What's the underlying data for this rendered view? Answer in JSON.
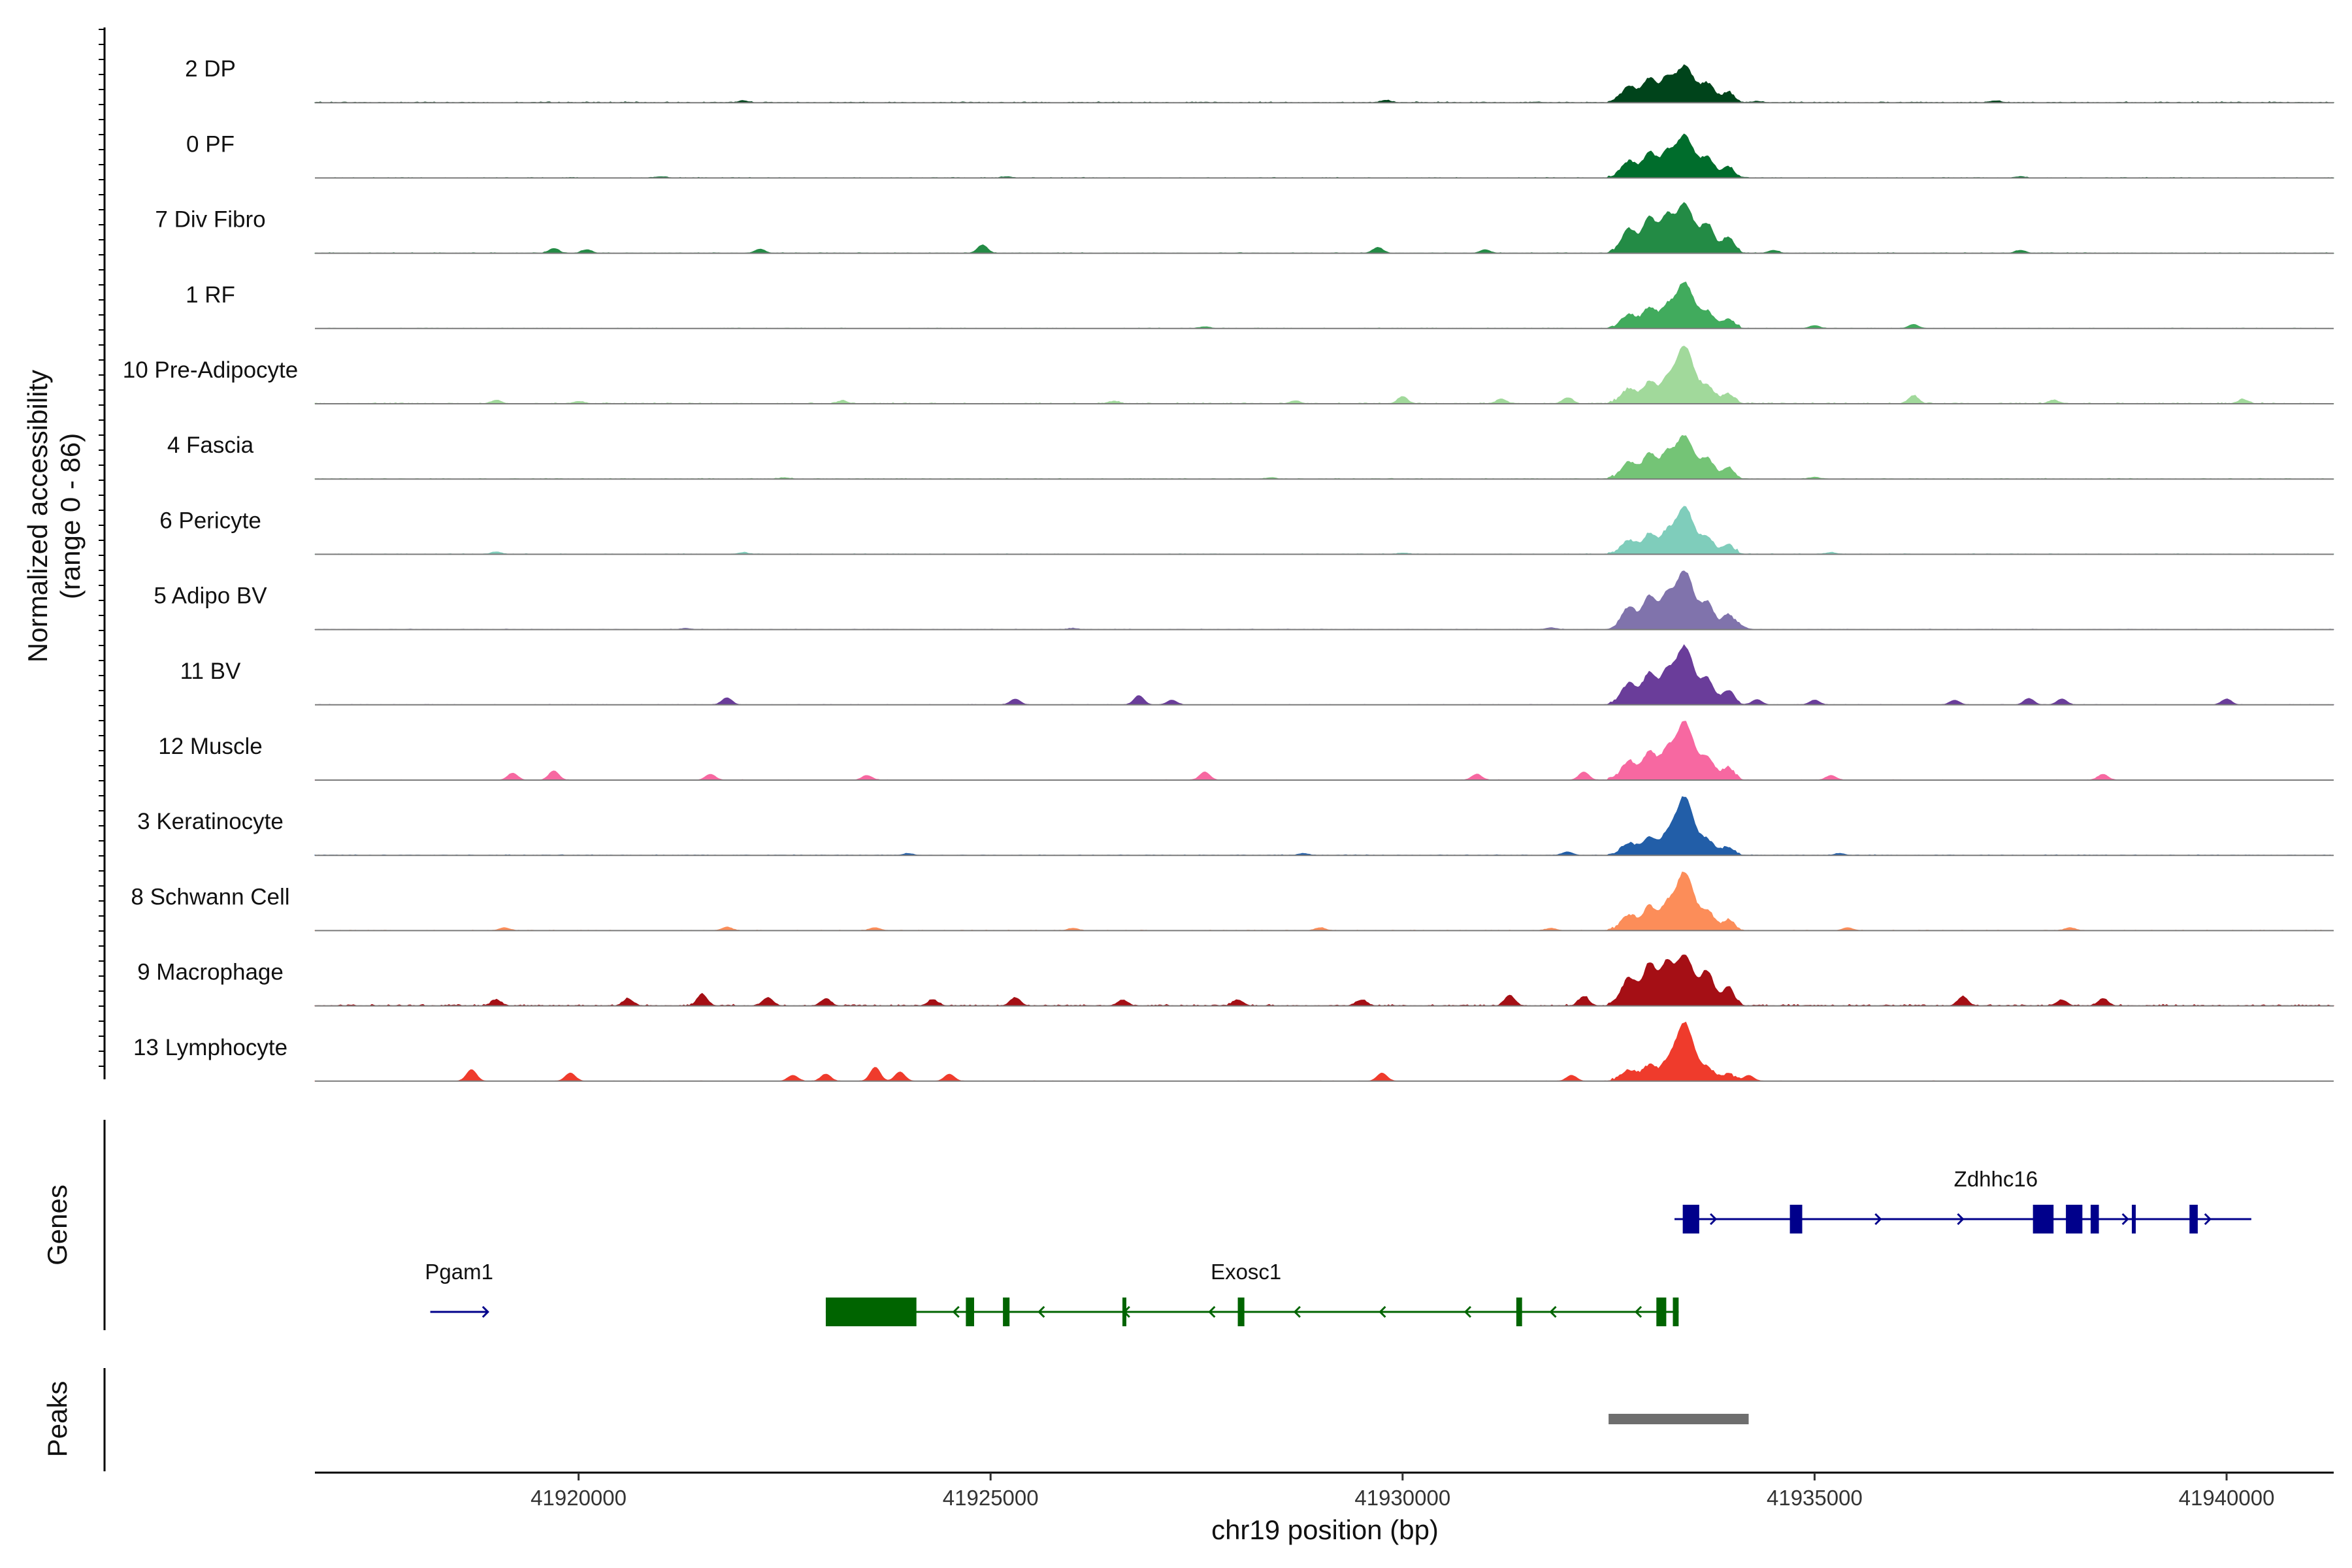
{
  "chart_data": {
    "type": "area",
    "title": "",
    "ylabel_line1": "Normalized accessibility",
    "ylabel_line2": "(range 0 - 86)",
    "xlabel": "chr19 position (bp)",
    "xlim": [
      41916800,
      41941300
    ],
    "ylim": [
      0,
      86
    ],
    "x_ticks": [
      41920000,
      41925000,
      41930000,
      41935000,
      41940000
    ],
    "x_tick_labels": [
      "41920000",
      "41925000",
      "41930000",
      "41935000",
      "41940000"
    ],
    "tracks": [
      {
        "name": "2 DP",
        "color": "#00441b",
        "bg": 0.018,
        "main_peak": 0.62,
        "side_peak": 0.4,
        "noise": [
          [
            41922000,
            0.03
          ],
          [
            41929800,
            0.04
          ],
          [
            41934300,
            0.02
          ],
          [
            41937200,
            0.03
          ]
        ]
      },
      {
        "name": "0 PF",
        "color": "#006d2c",
        "bg": 0.012,
        "main_peak": 0.72,
        "side_peak": 0.42,
        "noise": [
          [
            41921000,
            0.02
          ],
          [
            41925200,
            0.02
          ],
          [
            41937500,
            0.02
          ]
        ]
      },
      {
        "name": "7 Div Fibro",
        "color": "#238b45",
        "bg": 0.012,
        "main_peak": 0.84,
        "side_peak": 0.62,
        "noise": [
          [
            41919700,
            0.08
          ],
          [
            41920100,
            0.06
          ],
          [
            41922200,
            0.07
          ],
          [
            41924900,
            0.14
          ],
          [
            41929700,
            0.1
          ],
          [
            41931000,
            0.06
          ],
          [
            41934500,
            0.05
          ],
          [
            41937500,
            0.05
          ]
        ]
      },
      {
        "name": "1 RF",
        "color": "#41ab5d",
        "bg": 0.01,
        "main_peak": 0.78,
        "side_peak": 0.34,
        "noise": [
          [
            41927600,
            0.03
          ],
          [
            41935000,
            0.05
          ],
          [
            41936200,
            0.07
          ]
        ]
      },
      {
        "name": "10 Pre-Adipocyte",
        "color": "#a1d99b",
        "bg": 0.02,
        "main_peak": 0.98,
        "side_peak": 0.36,
        "noise": [
          [
            41919000,
            0.06
          ],
          [
            41920000,
            0.04
          ],
          [
            41923200,
            0.05
          ],
          [
            41926500,
            0.04
          ],
          [
            41928700,
            0.05
          ],
          [
            41930000,
            0.12
          ],
          [
            41931200,
            0.08
          ],
          [
            41932000,
            0.1
          ],
          [
            41936200,
            0.14
          ],
          [
            41937900,
            0.06
          ],
          [
            41940200,
            0.07
          ]
        ]
      },
      {
        "name": "4 Fascia",
        "color": "#74c476",
        "bg": 0.012,
        "main_peak": 0.74,
        "side_peak": 0.42,
        "noise": [
          [
            41922500,
            0.02
          ],
          [
            41928400,
            0.02
          ],
          [
            41935000,
            0.03
          ]
        ]
      },
      {
        "name": "6 Pericyte",
        "color": "#7fcdbb",
        "bg": 0.012,
        "main_peak": 0.8,
        "side_peak": 0.34,
        "noise": [
          [
            41919000,
            0.04
          ],
          [
            41922000,
            0.03
          ],
          [
            41930000,
            0.02
          ],
          [
            41935200,
            0.03
          ]
        ]
      },
      {
        "name": "5 Adipo BV",
        "color": "#8073ac",
        "bg": 0.01,
        "main_peak": 1.0,
        "side_peak": 0.56,
        "noise": [
          [
            41921300,
            0.02
          ],
          [
            41926000,
            0.02
          ],
          [
            41931800,
            0.03
          ],
          [
            41934100,
            0.06
          ]
        ]
      },
      {
        "name": "11 BV",
        "color": "#6a3d9a",
        "bg": 0.008,
        "main_peak": 1.0,
        "side_peak": 0.54,
        "noise": [
          [
            41921800,
            0.12
          ],
          [
            41925300,
            0.1
          ],
          [
            41926800,
            0.16
          ],
          [
            41927200,
            0.08
          ],
          [
            41934300,
            0.09
          ],
          [
            41935000,
            0.08
          ],
          [
            41936700,
            0.08
          ],
          [
            41937600,
            0.11
          ],
          [
            41938000,
            0.1
          ],
          [
            41940000,
            0.1
          ]
        ]
      },
      {
        "name": "12 Muscle",
        "color": "#f768a1",
        "bg": 0.008,
        "main_peak": 1.0,
        "side_peak": 0.48,
        "noise": [
          [
            41919200,
            0.12
          ],
          [
            41919700,
            0.16
          ],
          [
            41921600,
            0.1
          ],
          [
            41923500,
            0.08
          ],
          [
            41927600,
            0.14
          ],
          [
            41930900,
            0.1
          ],
          [
            41932200,
            0.14
          ],
          [
            41935200,
            0.08
          ],
          [
            41938500,
            0.1
          ]
        ]
      },
      {
        "name": "3 Keratinocyte",
        "color": "#225ea8",
        "bg": 0.012,
        "main_peak": 1.0,
        "side_peak": 0.3,
        "noise": [
          [
            41924000,
            0.03
          ],
          [
            41928800,
            0.03
          ],
          [
            41932000,
            0.06
          ],
          [
            41935300,
            0.03
          ]
        ]
      },
      {
        "name": "8 Schwann Cell",
        "color": "#fc8d59",
        "bg": 0.01,
        "main_peak": 1.0,
        "side_peak": 0.4,
        "noise": [
          [
            41919100,
            0.05
          ],
          [
            41921800,
            0.06
          ],
          [
            41923600,
            0.05
          ],
          [
            41926000,
            0.04
          ],
          [
            41929000,
            0.05
          ],
          [
            41931800,
            0.04
          ],
          [
            41935400,
            0.05
          ],
          [
            41938100,
            0.05
          ]
        ]
      },
      {
        "name": "9 Macrophage",
        "color": "#a50f15",
        "bg": 0.028,
        "main_peak": 0.86,
        "side_peak": 0.72,
        "noise": [
          [
            41919000,
            0.1
          ],
          [
            41920600,
            0.12
          ],
          [
            41921500,
            0.2
          ],
          [
            41922300,
            0.14
          ],
          [
            41923000,
            0.12
          ],
          [
            41924300,
            0.1
          ],
          [
            41925300,
            0.14
          ],
          [
            41926600,
            0.1
          ],
          [
            41928000,
            0.1
          ],
          [
            41929500,
            0.1
          ],
          [
            41931300,
            0.18
          ],
          [
            41932200,
            0.16
          ],
          [
            41936800,
            0.16
          ],
          [
            41938000,
            0.1
          ],
          [
            41938500,
            0.12
          ]
        ]
      },
      {
        "name": "13 Lymphocyte",
        "color": "#ef3b2c",
        "bg": 0.006,
        "main_peak": 1.0,
        "side_peak": 0.26,
        "noise": [
          [
            41918700,
            0.2
          ],
          [
            41919900,
            0.14
          ],
          [
            41922600,
            0.1
          ],
          [
            41923000,
            0.12
          ],
          [
            41923600,
            0.24
          ],
          [
            41923900,
            0.16
          ],
          [
            41924500,
            0.12
          ],
          [
            41929750,
            0.14
          ],
          [
            41932050,
            0.1
          ],
          [
            41934200,
            0.1
          ]
        ]
      }
    ],
    "genes": [
      {
        "name": "Zdhhc16",
        "color": "#00008b",
        "start": 41933300,
        "end": 41940300,
        "strand": "+",
        "row": 0,
        "exons": [
          [
            41933400,
            41933600
          ],
          [
            41934700,
            41934850
          ],
          [
            41937650,
            41937900
          ],
          [
            41938050,
            41938250
          ],
          [
            41938350,
            41938450
          ],
          [
            41938850,
            41938870
          ],
          [
            41939550,
            41939650
          ]
        ]
      },
      {
        "name": "Exosc1",
        "color": "#006400",
        "start": 41923000,
        "end": 41933350,
        "strand": "-",
        "row": 1,
        "exons": [
          [
            41923000,
            41924100
          ],
          [
            41924700,
            41924800
          ],
          [
            41925150,
            41925230
          ],
          [
            41926600,
            41926620
          ],
          [
            41928000,
            41928080
          ],
          [
            41931380,
            41931450
          ],
          [
            41933080,
            41933200
          ],
          [
            41933280,
            41933350
          ]
        ]
      },
      {
        "name": "Pgam1",
        "color": "#00008b",
        "start": 41918200,
        "end": 41918900,
        "strand": "+",
        "row": 1,
        "exons": []
      }
    ],
    "peaks": [
      {
        "start": 41932500,
        "end": 41934200,
        "color": "#6e6e6e"
      }
    ]
  },
  "panels": {
    "genes_title": "Genes",
    "peaks_title": "Peaks"
  }
}
